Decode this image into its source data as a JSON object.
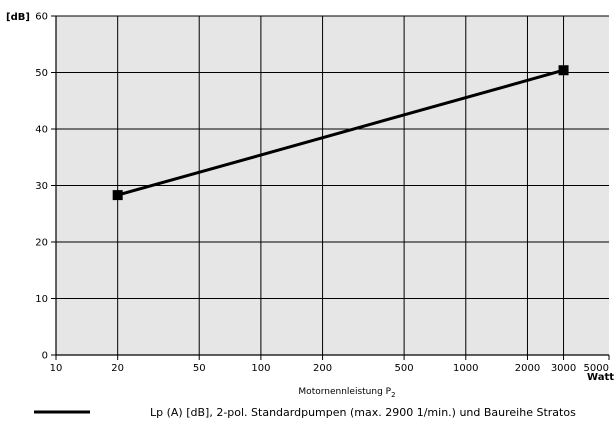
{
  "chart_data": {
    "type": "line",
    "title": "",
    "xlabel": "Motornennleistung P",
    "xlabel_sub": "2",
    "ylabel": "[dB]",
    "x_unit": "Watt",
    "x_scale": "log",
    "xlim": [
      10,
      5000
    ],
    "ylim": [
      0,
      60
    ],
    "x_ticks": [
      10,
      20,
      50,
      100,
      200,
      500,
      1000,
      2000,
      3000,
      5000
    ],
    "x_tick_labels": [
      "10",
      "20",
      "50",
      "100",
      "200",
      "500",
      "1000",
      "2000",
      "3000",
      "5000"
    ],
    "y_ticks": [
      0,
      10,
      20,
      30,
      40,
      50,
      60
    ],
    "y_tick_labels": [
      "0",
      "10",
      "20",
      "30",
      "40",
      "50",
      "60"
    ],
    "grid": true,
    "legend_position": "bottom",
    "colors": {
      "plot_background": "#e6e6e6",
      "grid": "#000000",
      "series": "#000000"
    },
    "series": [
      {
        "name": "Lp (A) [dB], 2-pol. Standardpumpen (max. 2900 1/min.) und Baureihe Stratos",
        "x": [
          20,
          3000
        ],
        "y": [
          28.3,
          50.4
        ],
        "marker": "square"
      }
    ]
  }
}
